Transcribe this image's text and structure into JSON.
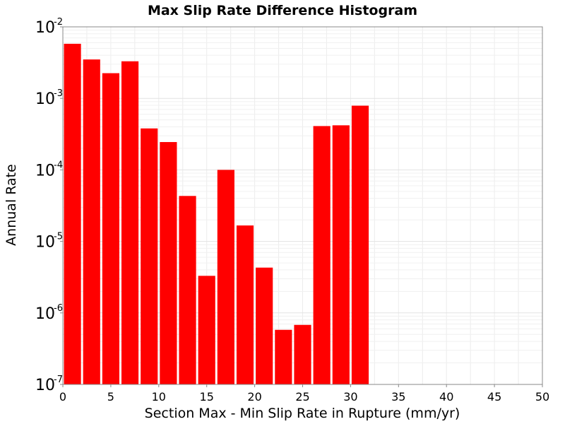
{
  "chart_data": {
    "type": "bar",
    "title": "Max Slip Rate Difference Histogram",
    "xlabel": "Section Max - Min Slip Rate in Rupture (mm/yr)",
    "ylabel": "Annual Rate",
    "xlim": [
      0,
      50
    ],
    "ylim": [
      1e-07,
      0.01
    ],
    "y_scale": "log",
    "bin_width": 2,
    "x_ticks": [
      "0",
      "5",
      "10",
      "15",
      "20",
      "25",
      "30",
      "35",
      "40",
      "45",
      "50"
    ],
    "y_ticks": [
      {
        "base": "10",
        "exp": "-7"
      },
      {
        "base": "10",
        "exp": "-6"
      },
      {
        "base": "10",
        "exp": "-5"
      },
      {
        "base": "10",
        "exp": "-4"
      },
      {
        "base": "10",
        "exp": "-3"
      },
      {
        "base": "10",
        "exp": "-2"
      }
    ],
    "grid": true,
    "bar_color": "#ff0000",
    "series": [
      {
        "bins": [
          {
            "x0": 0,
            "x1": 2,
            "value": 0.0058
          },
          {
            "x0": 2,
            "x1": 4,
            "value": 0.0035
          },
          {
            "x0": 4,
            "x1": 6,
            "value": 0.00225
          },
          {
            "x0": 6,
            "x1": 8,
            "value": 0.0033
          },
          {
            "x0": 8,
            "x1": 10,
            "value": 0.00038
          },
          {
            "x0": 10,
            "x1": 12,
            "value": 0.000245
          },
          {
            "x0": 12,
            "x1": 14,
            "value": 4.32e-05
          },
          {
            "x0": 14,
            "x1": 16,
            "value": 3.3e-06
          },
          {
            "x0": 16,
            "x1": 18,
            "value": 0.0001
          },
          {
            "x0": 18,
            "x1": 20,
            "value": 1.67e-05
          },
          {
            "x0": 20,
            "x1": 22,
            "value": 4.3e-06
          },
          {
            "x0": 22,
            "x1": 24,
            "value": 5.8e-07
          },
          {
            "x0": 24,
            "x1": 26,
            "value": 6.8e-07
          },
          {
            "x0": 26,
            "x1": 28,
            "value": 0.00041
          },
          {
            "x0": 28,
            "x1": 30,
            "value": 0.00042
          },
          {
            "x0": 30,
            "x1": 32,
            "value": 0.00079
          }
        ]
      }
    ]
  }
}
